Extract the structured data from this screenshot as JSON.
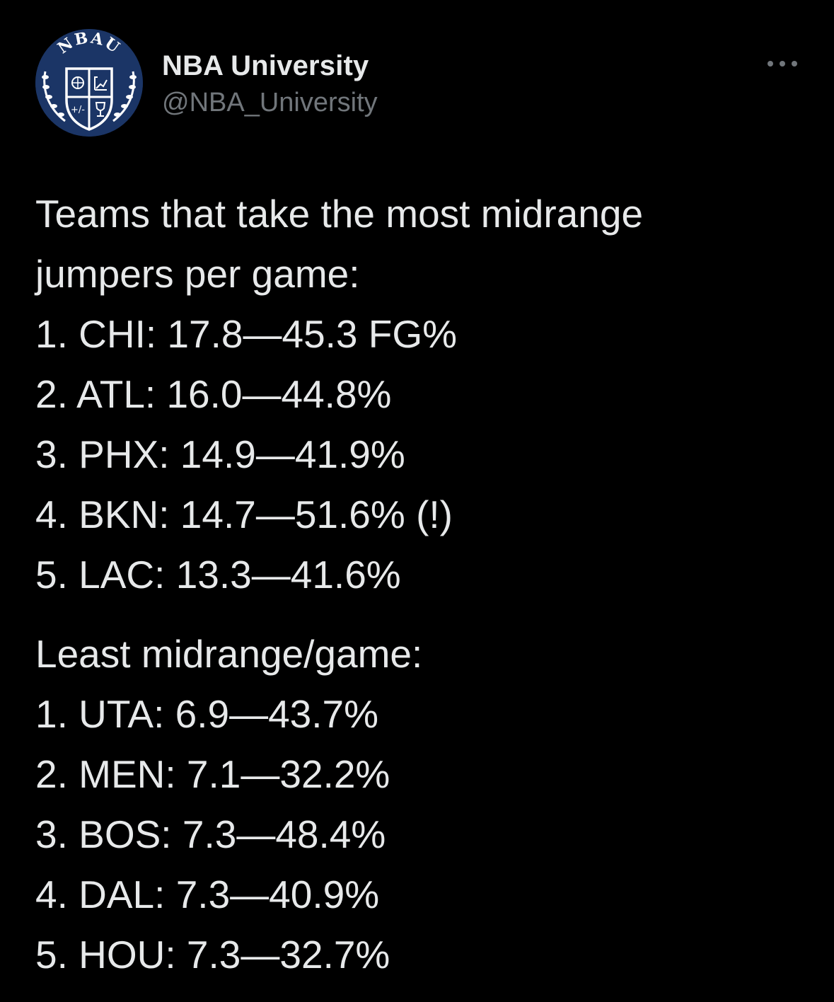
{
  "author": {
    "display_name": "NBA University",
    "handle": "@NBA_University",
    "avatar_icon": "nba-university-crest-icon",
    "avatar_text": "NBAU",
    "avatar_color": "#1b3566"
  },
  "more_icon": "more-dots-icon",
  "tweet": {
    "intro_line_1": "Teams that take the most midrange",
    "intro_line_2": "jumpers per game:",
    "most": [
      "1. CHI: 17.8—45.3 FG%",
      "2. ATL: 16.0—44.8%",
      "3. PHX: 14.9—41.9%",
      "4. BKN: 14.7—51.6% (!)",
      "5. LAC: 13.3—41.6%"
    ],
    "least_heading": "Least midrange/game:",
    "least": [
      "1. UTA: 6.9—43.7%",
      "2. MEN: 7.1—32.2%",
      "3. BOS: 7.3—48.4%",
      "4. DAL: 7.3—40.9%",
      "5. HOU: 7.3—32.7%"
    ]
  },
  "colors": {
    "background": "#000000",
    "text": "#e7e9ea",
    "secondary_text": "#71767b"
  }
}
